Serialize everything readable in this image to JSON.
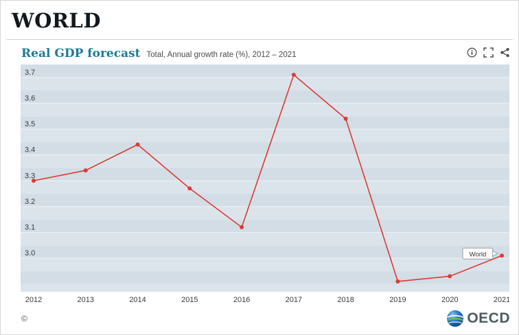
{
  "page": {
    "title": "WORLD",
    "copyright": "©"
  },
  "panel": {
    "title": "Real GDP forecast",
    "subtitle": "Total, Annual growth rate (%), 2012 – 2021",
    "icons": [
      "info-icon",
      "fullscreen-icon",
      "share-icon"
    ]
  },
  "logo": {
    "text": "OECD"
  },
  "chart_data": {
    "type": "line",
    "title": "Real GDP forecast",
    "subtitle": "Total, Annual growth rate (%), 2012 – 2021",
    "x": [
      "2012",
      "2013",
      "2014",
      "2015",
      "2016",
      "2017",
      "2018",
      "2019",
      "2020",
      "2021"
    ],
    "series": [
      {
        "name": "World",
        "values": [
          3.3,
          3.34,
          3.44,
          3.27,
          3.12,
          3.71,
          3.54,
          2.91,
          2.93,
          3.01
        ]
      }
    ],
    "ylim": [
      2.87,
      3.75
    ],
    "yticks": [
      3.0,
      3.1,
      3.2,
      3.3,
      3.4,
      3.5,
      3.6,
      3.7
    ],
    "line_color": "#da3b33",
    "band_colors": [
      "#dce4eb",
      "#d3dde6"
    ],
    "grid_color": "#eef3f6",
    "label_color": "#3a3a3a",
    "grid": true,
    "legend_position": "annotation-last-point",
    "annotation": "World"
  }
}
